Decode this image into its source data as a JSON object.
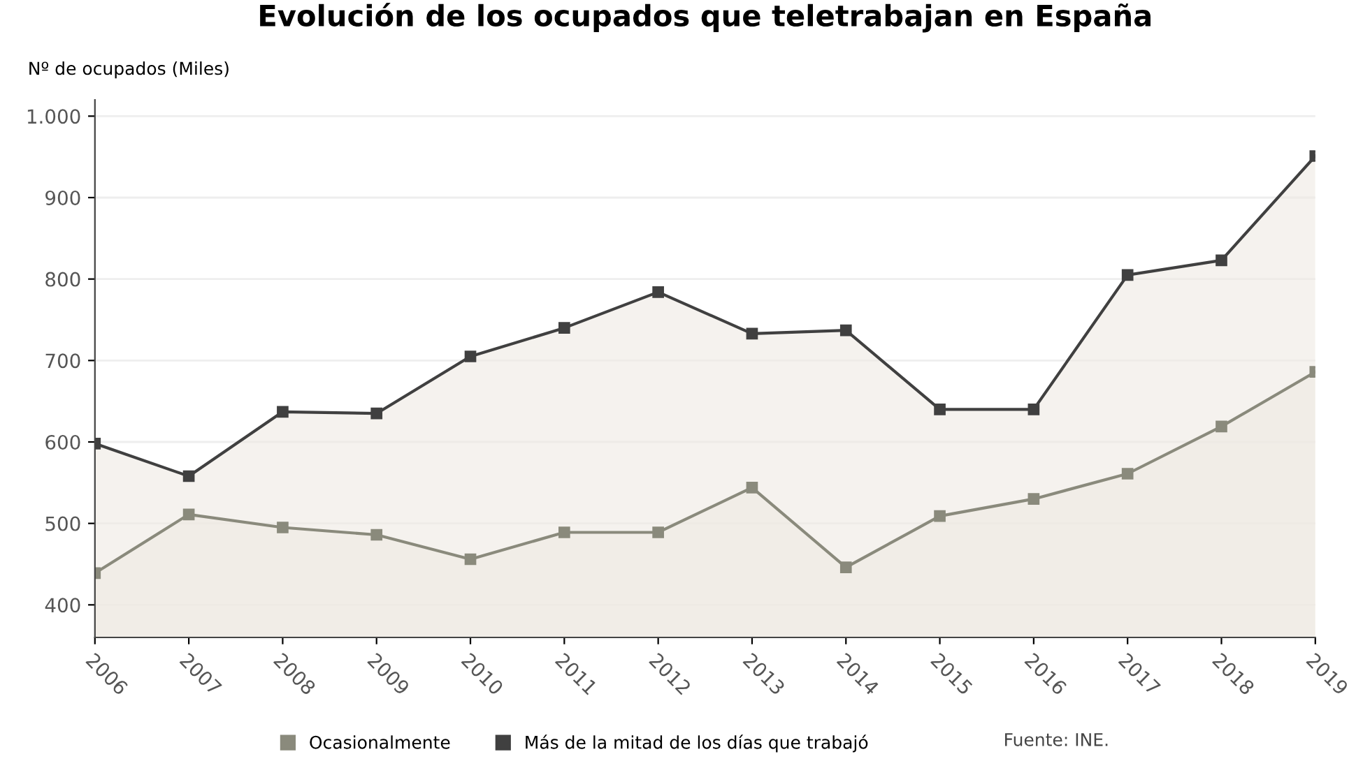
{
  "chart_data": {
    "type": "area",
    "title": "Evolución de los ocupados que teletrabajan en España",
    "ylabel": "Nº de ocupados (Miles)",
    "categories": [
      "2006",
      "2007",
      "2008",
      "2009",
      "2010",
      "2011",
      "2012",
      "2013",
      "2014",
      "2015",
      "2016",
      "2017",
      "2018",
      "2019"
    ],
    "series": [
      {
        "name": "Ocasionalmente",
        "color": "#8a8a7c",
        "values": [
          439,
          511,
          495,
          486,
          456,
          489,
          489,
          544,
          446,
          509,
          530,
          561,
          619,
          686
        ]
      },
      {
        "name": "Más de la mitad de los días que trabajó",
        "color": "#404040",
        "values": [
          598,
          558,
          637,
          635,
          705,
          740,
          784,
          733,
          737,
          640,
          640,
          805,
          823,
          951
        ]
      }
    ],
    "ylim": [
      360,
      1020
    ],
    "yticks": [
      400,
      500,
      600,
      700,
      800,
      900,
      {
        "value": 1000,
        "label": "1.000"
      }
    ],
    "grid": "y",
    "legend": "bottom",
    "marker": "square",
    "line_style": "solid",
    "annotations": [
      "Fuente: INE."
    ]
  }
}
